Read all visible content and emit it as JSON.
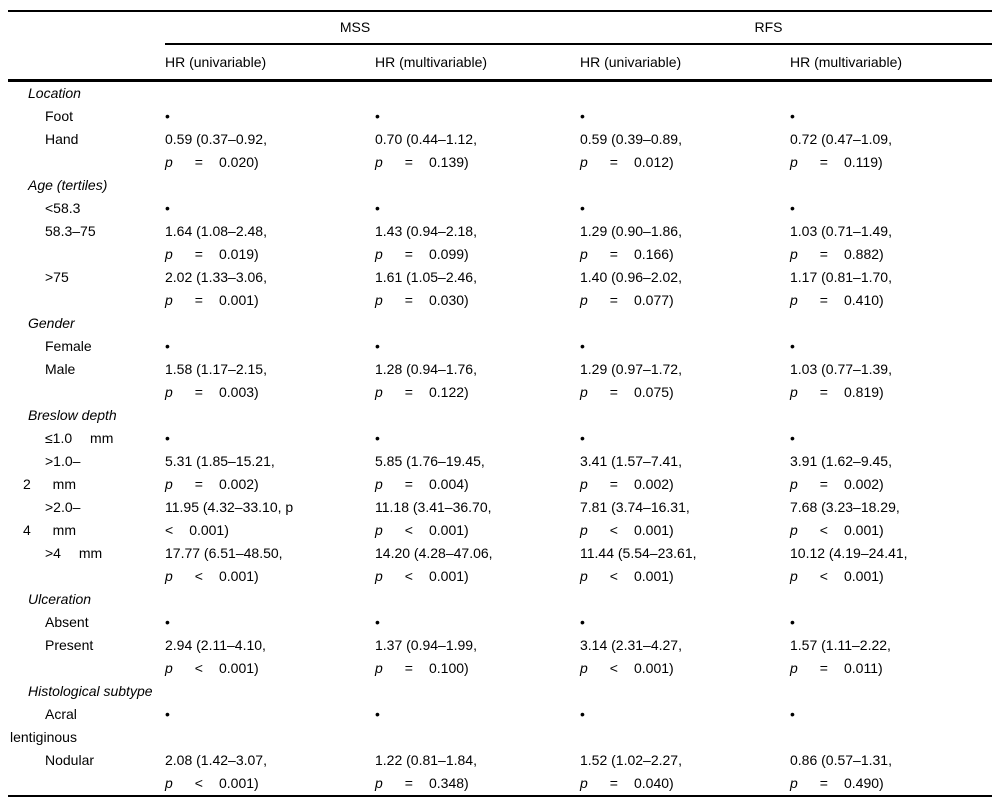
{
  "table": {
    "column_groups": [
      {
        "label": "MSS"
      },
      {
        "label": "RFS"
      }
    ],
    "sub_headers": [
      "HR (univariable)",
      "HR (multivariable)",
      "HR (univariable)",
      "HR (multivariable)"
    ],
    "reference_marker": "•",
    "rows": [
      {
        "kind": "group",
        "label_lines": [
          {
            "text": "Location",
            "cls": "group"
          }
        ]
      },
      {
        "kind": "item",
        "label_lines": [
          {
            "text": "Foot",
            "cls": "item"
          }
        ],
        "cells": [
          {
            "ref": true
          },
          {
            "ref": true
          },
          {
            "ref": true
          },
          {
            "ref": true
          }
        ]
      },
      {
        "kind": "item",
        "label_lines": [
          {
            "text": "Hand",
            "cls": "item"
          }
        ],
        "cells": [
          {
            "l1": "0.59 (0.37–0.92,",
            "op": "=",
            "val": "0.020)"
          },
          {
            "l1": "0.70 (0.44–1.12,",
            "op": "=",
            "val": "0.139)"
          },
          {
            "l1": "0.59 (0.39–0.89,",
            "op": "=",
            "val": "0.012)"
          },
          {
            "l1": "0.72 (0.47–1.09,",
            "op": "=",
            "val": "0.119)"
          }
        ]
      },
      {
        "kind": "group",
        "label_lines": [
          {
            "text": "Age (tertiles)",
            "cls": "group"
          }
        ]
      },
      {
        "kind": "item",
        "label_lines": [
          {
            "text": "<58.3",
            "cls": "item"
          }
        ],
        "cells": [
          {
            "ref": true
          },
          {
            "ref": true
          },
          {
            "ref": true
          },
          {
            "ref": true
          }
        ]
      },
      {
        "kind": "item",
        "label_lines": [
          {
            "text": "58.3–75",
            "cls": "item"
          }
        ],
        "cells": [
          {
            "l1": "1.64 (1.08–2.48,",
            "op": "=",
            "val": "0.019)"
          },
          {
            "l1": "1.43 (0.94–2.18,",
            "op": "=",
            "val": "0.099)"
          },
          {
            "l1": "1.29 (0.90–1.86,",
            "op": "=",
            "val": "0.166)"
          },
          {
            "l1": "1.03 (0.71–1.49,",
            "op": "=",
            "val": "0.882)"
          }
        ]
      },
      {
        "kind": "item",
        "label_lines": [
          {
            "text": ">75",
            "cls": "item"
          }
        ],
        "cells": [
          {
            "l1": "2.02 (1.33–3.06,",
            "op": "=",
            "val": "0.001)"
          },
          {
            "l1": "1.61 (1.05–2.46,",
            "op": "=",
            "val": "0.030)"
          },
          {
            "l1": "1.40 (0.96–2.02,",
            "op": "=",
            "val": "0.077)"
          },
          {
            "l1": "1.17 (0.81–1.70,",
            "op": "=",
            "val": "0.410)"
          }
        ]
      },
      {
        "kind": "group",
        "label_lines": [
          {
            "text": "Gender",
            "cls": "group"
          }
        ]
      },
      {
        "kind": "item",
        "label_lines": [
          {
            "text": "Female",
            "cls": "item"
          }
        ],
        "cells": [
          {
            "ref": true
          },
          {
            "ref": true
          },
          {
            "ref": true
          },
          {
            "ref": true
          }
        ]
      },
      {
        "kind": "item",
        "label_lines": [
          {
            "text": "Male",
            "cls": "item"
          }
        ],
        "cells": [
          {
            "l1": "1.58 (1.17–2.15,",
            "op": "=",
            "val": "0.003)"
          },
          {
            "l1": "1.28 (0.94–1.76,",
            "op": "=",
            "val": "0.122)"
          },
          {
            "l1": "1.29 (0.97–1.72,",
            "op": "=",
            "val": "0.075)"
          },
          {
            "l1": "1.03 (0.77–1.39,",
            "op": "=",
            "val": "0.819)"
          }
        ]
      },
      {
        "kind": "group",
        "label_lines": [
          {
            "text": "Breslow depth",
            "cls": "group"
          }
        ]
      },
      {
        "kind": "item",
        "label_lines": [
          {
            "text": "≤1.0 mm",
            "cls": "item",
            "wide": true
          }
        ],
        "cells": [
          {
            "ref": true
          },
          {
            "ref": true
          },
          {
            "ref": true
          },
          {
            "ref": true
          }
        ]
      },
      {
        "kind": "item",
        "label_lines": [
          {
            "text": ">1.0–",
            "cls": "item"
          },
          {
            "text": "2 mm",
            "cls": "cont"
          }
        ],
        "cells": [
          {
            "l1": "5.31 (1.85–15.21,",
            "op": "=",
            "val": "0.002)"
          },
          {
            "l1": "5.85 (1.76–19.45,",
            "op": "=",
            "val": "0.004)"
          },
          {
            "l1": "3.41 (1.57–7.41,",
            "op": "=",
            "val": "0.002)"
          },
          {
            "l1": "3.91 (1.62–9.45,",
            "op": "=",
            "val": "0.002)"
          }
        ]
      },
      {
        "kind": "item",
        "label_lines": [
          {
            "text": ">2.0–",
            "cls": "item"
          },
          {
            "text": "4 mm",
            "cls": "cont"
          }
        ],
        "cells": [
          {
            "l1": "11.95 (4.32–33.10, p",
            "p": "",
            "op": "<",
            "val": "0.001)"
          },
          {
            "l1": "11.18 (3.41–36.70,",
            "op": "<",
            "val": "0.001)"
          },
          {
            "l1": "7.81 (3.74–16.31,",
            "op": "<",
            "val": "0.001)"
          },
          {
            "l1": "7.68 (3.23–18.29,",
            "op": "<",
            "val": "0.001)"
          }
        ]
      },
      {
        "kind": "item",
        "label_lines": [
          {
            "text": ">4 mm",
            "cls": "item",
            "wide": true
          }
        ],
        "cells": [
          {
            "l1": "17.77 (6.51–48.50,",
            "op": "<",
            "val": "0.001)"
          },
          {
            "l1": "14.20 (4.28–47.06,",
            "op": "<",
            "val": "0.001)"
          },
          {
            "l1": "11.44 (5.54–23.61,",
            "op": "<",
            "val": "0.001)"
          },
          {
            "l1": "10.12 (4.19–24.41,",
            "op": "<",
            "val": "0.001)"
          }
        ]
      },
      {
        "kind": "group",
        "label_lines": [
          {
            "text": "Ulceration",
            "cls": "group"
          }
        ]
      },
      {
        "kind": "item",
        "label_lines": [
          {
            "text": "Absent",
            "cls": "item"
          }
        ],
        "cells": [
          {
            "ref": true
          },
          {
            "ref": true
          },
          {
            "ref": true
          },
          {
            "ref": true
          }
        ]
      },
      {
        "kind": "item",
        "label_lines": [
          {
            "text": "Present",
            "cls": "item"
          }
        ],
        "cells": [
          {
            "l1": "2.94 (2.11–4.10,",
            "op": "<",
            "val": "0.001)"
          },
          {
            "l1": "1.37 (0.94–1.99,",
            "op": "=",
            "val": "0.100)"
          },
          {
            "l1": "3.14 (2.31–4.27,",
            "op": "<",
            "val": "0.001)"
          },
          {
            "l1": "1.57 (1.11–2.22,",
            "op": "=",
            "val": "0.011)"
          }
        ]
      },
      {
        "kind": "group",
        "label_lines": [
          {
            "text": "Histological subtype",
            "cls": "group"
          }
        ]
      },
      {
        "kind": "item",
        "label_lines": [
          {
            "text": "Acral",
            "cls": "item"
          },
          {
            "text": "lentiginous",
            "cls": "cont0"
          }
        ],
        "cells": [
          {
            "ref": true
          },
          {
            "ref": true
          },
          {
            "ref": true
          },
          {
            "ref": true
          }
        ]
      },
      {
        "kind": "item",
        "label_lines": [
          {
            "text": "Nodular",
            "cls": "item"
          }
        ],
        "cells": [
          {
            "l1": "2.08 (1.42–3.07,",
            "op": "<",
            "val": "0.001)"
          },
          {
            "l1": "1.22 (0.81–1.84,",
            "op": "=",
            "val": "0.348)"
          },
          {
            "l1": "1.52 (1.02–2.27,",
            "op": "=",
            "val": "0.040)"
          },
          {
            "l1": "0.86 (0.57–1.31,",
            "op": "=",
            "val": "0.490)"
          }
        ]
      }
    ]
  }
}
